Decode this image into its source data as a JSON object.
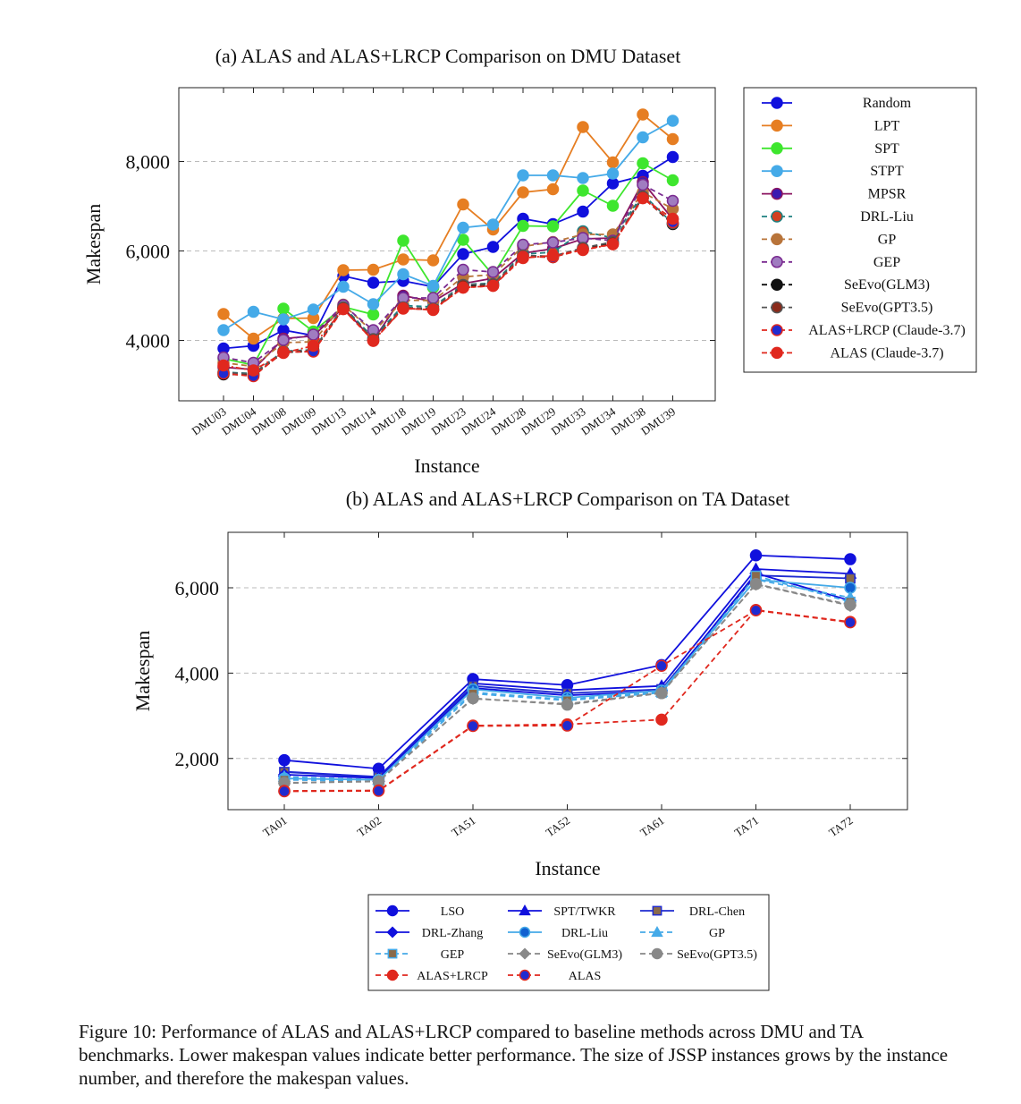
{
  "figure_caption": "Figure 10: Performance of ALAS and ALAS+LRCP compared to baseline methods across DMU and TA benchmarks. Lower makespan values indicate better performance. The size of JSSP instances grows by the instance number, and therefore the makespan values.",
  "chart_data": [
    {
      "type": "line",
      "title": "(a) ALAS and ALAS+LRCP Comparison on DMU Dataset",
      "xlabel": "Instance",
      "ylabel": "Makespan",
      "ylim": [
        2650,
        9650
      ],
      "yticks": [
        4000,
        6000,
        8000
      ],
      "ytick_labels": [
        "4,000",
        "6,000",
        "8,000"
      ],
      "grid": "horizontal dashed",
      "legend_position": "right, outside",
      "categories": [
        "DMU03",
        "DMU04",
        "DMU08",
        "DMU09",
        "DMU13",
        "DMU14",
        "DMU18",
        "DMU19",
        "DMU23",
        "DMU24",
        "DMU28",
        "DMU29",
        "DMU33",
        "DMU34",
        "DMU38",
        "DMU39"
      ],
      "series": [
        {
          "name": "Random",
          "color": "#1010dd",
          "fill": "#1010dd",
          "dash": "",
          "marker": "circle",
          "values": [
            3820,
            3880,
            4230,
            4110,
            5440,
            5290,
            5330,
            5200,
            5930,
            6090,
            6720,
            6600,
            6880,
            7510,
            7680,
            8100
          ]
        },
        {
          "name": "LPT",
          "color": "#e67e22",
          "fill": "#e67e22",
          "dash": "",
          "marker": "circle",
          "values": [
            4590,
            4040,
            4490,
            4500,
            5570,
            5580,
            5810,
            5790,
            7040,
            6480,
            7310,
            7380,
            8770,
            7980,
            9050,
            8500
          ]
        },
        {
          "name": "SPT",
          "color": "#3ee62e",
          "fill": "#3ee62e",
          "dash": "",
          "marker": "circle",
          "values": [
            3590,
            3450,
            4710,
            4200,
            4750,
            4580,
            6230,
            5180,
            6250,
            5460,
            6560,
            6550,
            7350,
            7010,
            7960,
            7580
          ]
        },
        {
          "name": "STPT",
          "color": "#45aae8",
          "fill": "#45aae8",
          "dash": "",
          "marker": "circle",
          "values": [
            4230,
            4640,
            4470,
            4690,
            5200,
            4810,
            5480,
            5220,
            6520,
            6590,
            7690,
            7690,
            7630,
            7730,
            8540,
            8910
          ]
        },
        {
          "name": "MPSR",
          "color": "#8b1560",
          "fill": "#3a18b0",
          "dash": "",
          "marker": "circle",
          "values": [
            3400,
            3350,
            4040,
            4100,
            4730,
            4000,
            5000,
            4870,
            5270,
            5390,
            5950,
            6050,
            6270,
            6290,
            7540,
            6710
          ]
        },
        {
          "name": "DRL-Liu",
          "color": "#1f8080",
          "fill": "#d34020",
          "dash": "6,4",
          "marker": "circle",
          "values": [
            3290,
            3260,
            3760,
            3790,
            4760,
            4060,
            4780,
            4750,
            5250,
            5280,
            5930,
            5970,
            6440,
            6290,
            7270,
            6610
          ]
        },
        {
          "name": "GP",
          "color": "#b8743a",
          "fill": "#b8743a",
          "dash": "6,4",
          "marker": "circle",
          "values": [
            3500,
            3420,
            3950,
            3970,
            4800,
            4180,
            4900,
            4890,
            5420,
            5470,
            6100,
            6200,
            6370,
            6370,
            7310,
            6940
          ]
        },
        {
          "name": "GEP",
          "color": "#7a2a90",
          "fill": "#a07cc0",
          "dash": "6,4",
          "marker": "circle",
          "values": [
            3620,
            3500,
            4010,
            4130,
            4790,
            4230,
            4950,
            4950,
            5580,
            5530,
            6140,
            6190,
            6290,
            6230,
            7480,
            7120
          ]
        },
        {
          "name": "SeEvo(GLM3)",
          "color": "#111111",
          "fill": "#111111",
          "dash": "6,4",
          "marker": "circle",
          "values": [
            3240,
            3230,
            3730,
            3760,
            4720,
            4010,
            4720,
            4690,
            5220,
            5240,
            5880,
            5860,
            6050,
            6180,
            7200,
            6600
          ]
        },
        {
          "name": "SeEvo(GPT3.5)",
          "color": "#555555",
          "fill": "#8a2a1a",
          "dash": "6,4",
          "marker": "circle",
          "values": [
            3280,
            3250,
            3750,
            3780,
            4740,
            4030,
            4740,
            4710,
            5240,
            5260,
            5900,
            5880,
            6070,
            6200,
            7220,
            6620
          ]
        },
        {
          "name": "ALAS+LRCP (Claude-3.7)",
          "color": "#e0281e",
          "fill": "#1f2bd0",
          "dash": "6,4",
          "marker": "circle",
          "values": [
            3260,
            3200,
            3740,
            3750,
            4700,
            3990,
            4710,
            4690,
            5180,
            5220,
            5870,
            5860,
            6030,
            6150,
            7180,
            6640
          ]
        },
        {
          "name": "ALAS (Claude-3.7)",
          "color": "#e0281e",
          "fill": "#e0281e",
          "dash": "6,3,2,3",
          "marker": "circle",
          "values": [
            3440,
            3330,
            3720,
            3880,
            4700,
            3990,
            4720,
            4680,
            5180,
            5220,
            5840,
            5900,
            6020,
            6150,
            7180,
            6720
          ]
        }
      ]
    },
    {
      "type": "line",
      "title": "(b) ALAS and ALAS+LRCP Comparison on TA Dataset",
      "xlabel": "Instance",
      "ylabel": "Makespan",
      "ylim": [
        800,
        7300
      ],
      "yticks": [
        2000,
        4000,
        6000
      ],
      "ytick_labels": [
        "2,000",
        "4,000",
        "6,000"
      ],
      "grid": "horizontal dashed",
      "legend_position": "bottom, outside, 3 columns",
      "categories": [
        "TA01",
        "TA02",
        "TA51",
        "TA52",
        "TA61",
        "TA71",
        "TA72"
      ],
      "series": [
        {
          "name": "LSO",
          "color": "#1010dd",
          "fill": "#1010dd",
          "dash": "",
          "marker": "circle",
          "values": [
            1960,
            1760,
            3860,
            3720,
            4190,
            6760,
            6670
          ]
        },
        {
          "name": "SPT/TWKR",
          "color": "#1010dd",
          "fill": "#1010dd",
          "dash": "",
          "marker": "triangle",
          "values": [
            1690,
            1570,
            3760,
            3600,
            3700,
            6440,
            6330
          ]
        },
        {
          "name": "DRL-Chen",
          "color": "#1f2bd0",
          "fill": "#8a6a4a",
          "dash": "",
          "marker": "square",
          "values": [
            1680,
            1560,
            3700,
            3530,
            3620,
            6290,
            6220
          ]
        },
        {
          "name": "DRL-Zhang",
          "color": "#1010dd",
          "fill": "#1010dd",
          "dash": "",
          "marker": "diamond",
          "values": [
            1620,
            1540,
            3650,
            3480,
            3580,
            6340,
            5700
          ]
        },
        {
          "name": "DRL-Liu",
          "color": "#45aae8",
          "fill": "#1060d0",
          "dash": "",
          "marker": "circle",
          "values": [
            1530,
            1500,
            3620,
            3420,
            3590,
            6190,
            6000
          ]
        },
        {
          "name": "GP",
          "color": "#45aae8",
          "fill": "#45aae8",
          "dash": "6,4",
          "marker": "triangle",
          "values": [
            1570,
            1500,
            3550,
            3380,
            3560,
            6190,
            5770
          ]
        },
        {
          "name": "GEP",
          "color": "#45aae8",
          "fill": "#8a6a4a",
          "dash": "6,4",
          "marker": "square",
          "values": [
            1500,
            1460,
            3520,
            3360,
            3540,
            6280,
            5670
          ]
        },
        {
          "name": "SeEvo(GLM3)",
          "color": "#888888",
          "fill": "#888888",
          "dash": "6,4",
          "marker": "diamond",
          "values": [
            1420,
            1470,
            3400,
            3280,
            3540,
            6080,
            5580
          ]
        },
        {
          "name": "SeEvo(GPT3.5)",
          "color": "#888888",
          "fill": "#888888",
          "dash": "6,4",
          "marker": "circle",
          "values": [
            1430,
            1460,
            3410,
            3260,
            3530,
            6090,
            5600
          ]
        },
        {
          "name": "ALAS+LRCP",
          "color": "#e0281e",
          "fill": "#e0281e",
          "dash": "6,4",
          "marker": "circle",
          "values": [
            1240,
            1250,
            2770,
            2800,
            2910,
            5480,
            5200
          ]
        },
        {
          "name": "ALAS",
          "color": "#e0281e",
          "fill": "#1f2bd0",
          "dash": "6,4",
          "marker": "circle",
          "values": [
            1230,
            1240,
            2760,
            2770,
            4170,
            5470,
            5190
          ]
        }
      ]
    }
  ]
}
